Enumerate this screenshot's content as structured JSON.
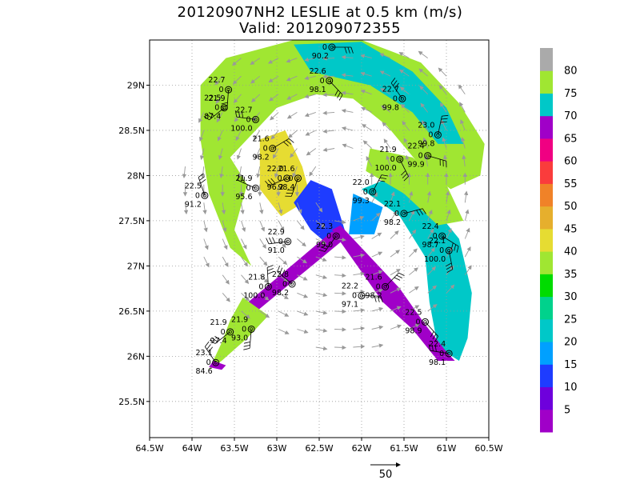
{
  "title": {
    "line1": "20120907NH2 LESLIE at 0.5 km (m/s)",
    "line2": "Valid: 201209072355"
  },
  "map": {
    "lon_range": [
      -64.5,
      -60.5
    ],
    "lat_range": [
      25.1,
      29.5
    ],
    "lon_ticks": [
      "64.5W",
      "64W",
      "63.5W",
      "63W",
      "62.5W",
      "62W",
      "61.5W",
      "61W",
      "60.5W"
    ],
    "lat_ticks": [
      "25.5N",
      "26N",
      "26.5N",
      "27N",
      "27.5N",
      "28N",
      "28.5N",
      "29N"
    ],
    "grid": "dotted"
  },
  "colorbar": {
    "labels": [
      "5",
      "10",
      "15",
      "20",
      "25",
      "30",
      "35",
      "40",
      "45",
      "50",
      "55",
      "60",
      "65",
      "70",
      "75",
      "80"
    ],
    "colors": [
      "#a000c8",
      "#6e00dc",
      "#1e3cff",
      "#00a0ff",
      "#00c8c8",
      "#00d28c",
      "#00dc00",
      "#a0e632",
      "#e6dc32",
      "#e6af2d",
      "#f08228",
      "#fa3c3c",
      "#f00082",
      "#a000c8",
      "#00c8c8",
      "#a0e632",
      "#aaaaaa"
    ]
  },
  "vector_scale": {
    "label": "50"
  },
  "stations": [
    {
      "lon": -62.35,
      "lat": 29.42,
      "t": "",
      "ref": "90.2"
    },
    {
      "lon": -62.38,
      "lat": 29.05,
      "t": "22.6",
      "ref": "98.1"
    },
    {
      "lon": -63.57,
      "lat": 28.95,
      "t": "22.7",
      "ref": "21.9"
    },
    {
      "lon": -63.62,
      "lat": 28.75,
      "t": "22.5",
      "ref": "87.4"
    },
    {
      "lon": -63.25,
      "lat": 28.62,
      "t": "22.7",
      "ref": "100.0"
    },
    {
      "lon": -61.52,
      "lat": 28.85,
      "t": "22.7",
      "ref": "99.8"
    },
    {
      "lon": -61.1,
      "lat": 28.45,
      "t": "23.0",
      "ref": "99.8"
    },
    {
      "lon": -63.05,
      "lat": 28.3,
      "t": "21.6",
      "ref": "98.2"
    },
    {
      "lon": -61.22,
      "lat": 28.22,
      "t": "22.4",
      "ref": "99.9"
    },
    {
      "lon": -61.55,
      "lat": 28.18,
      "t": "21.9",
      "ref": "100.0"
    },
    {
      "lon": -62.75,
      "lat": 27.97,
      "t": "21.6",
      "ref": "98.4"
    },
    {
      "lon": -62.88,
      "lat": 27.97,
      "t": "22.0",
      "ref": "96.2"
    },
    {
      "lon": -63.25,
      "lat": 27.86,
      "t": "21.9",
      "ref": "95.6"
    },
    {
      "lon": -63.85,
      "lat": 27.78,
      "t": "22.5",
      "ref": "91.2"
    },
    {
      "lon": -61.87,
      "lat": 27.82,
      "t": "22.0",
      "ref": "99.3"
    },
    {
      "lon": -61.5,
      "lat": 27.58,
      "t": "22.1",
      "ref": "98.2"
    },
    {
      "lon": -61.05,
      "lat": 27.33,
      "t": "22.4",
      "ref": "98.7"
    },
    {
      "lon": -60.97,
      "lat": 27.17,
      "t": "22.1",
      "ref": "100.0"
    },
    {
      "lon": -62.3,
      "lat": 27.33,
      "t": "22.3",
      "ref": "99.0"
    },
    {
      "lon": -62.87,
      "lat": 27.27,
      "t": "22.9",
      "ref": "91.0"
    },
    {
      "lon": -62.82,
      "lat": 26.8,
      "t": "22.8",
      "ref": "98.2"
    },
    {
      "lon": -63.1,
      "lat": 26.77,
      "t": "21.8",
      "ref": "100.0"
    },
    {
      "lon": -61.72,
      "lat": 26.77,
      "t": "21.6",
      "ref": "98.2"
    },
    {
      "lon": -62.0,
      "lat": 26.67,
      "t": "22.2",
      "ref": "97.1"
    },
    {
      "lon": -61.25,
      "lat": 26.38,
      "t": "22.5",
      "ref": "98.9"
    },
    {
      "lon": -63.3,
      "lat": 26.3,
      "t": "21.9",
      "ref": "93.0"
    },
    {
      "lon": -63.55,
      "lat": 26.27,
      "t": "21.9",
      "ref": "97.4"
    },
    {
      "lon": -60.97,
      "lat": 26.03,
      "t": "22.4",
      "ref": "98.1"
    },
    {
      "lon": -63.72,
      "lat": 25.93,
      "t": "23.1",
      "ref": "84.6"
    }
  ]
}
